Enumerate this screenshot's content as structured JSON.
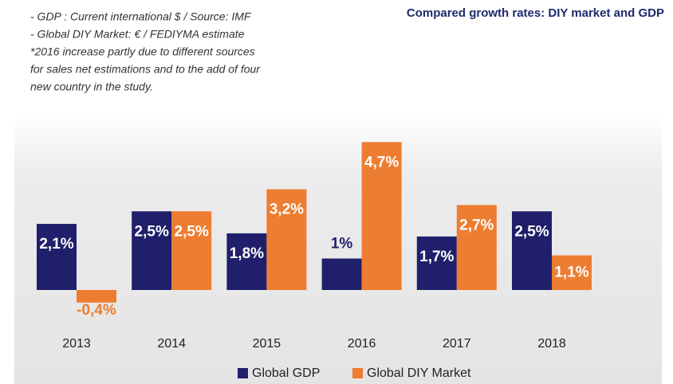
{
  "chart_data": {
    "type": "bar",
    "title": "Compared growth rates: DIY market and GDP",
    "notes": [
      "- GDP : Current international $ / Source: IMF",
      "- Global DIY Market: € / FEDIYMA estimate",
      "*2016 increase partly due to different sources",
      "for sales net estimations and to the add of four",
      "new country in the study."
    ],
    "categories": [
      "2013",
      "2014",
      "2015",
      "2016",
      "2017",
      "2018"
    ],
    "series": [
      {
        "name": "Global GDP",
        "color": "#1f1f6b",
        "values": [
          2.1,
          2.5,
          1.8,
          1,
          1.7,
          2.5
        ],
        "value_labels": [
          "2,1%",
          "2,5%",
          "1,8%",
          "1%",
          "1,7%",
          "2,5%"
        ]
      },
      {
        "name": "Global DIY Market",
        "color": "#ed7d31",
        "values": [
          -0.4,
          2.5,
          3.2,
          4.7,
          2.7,
          1.1
        ],
        "value_labels": [
          "-0,4%",
          "2,5%",
          "3,2%",
          "4,7%",
          "2,7%",
          "1,1%"
        ]
      }
    ],
    "legend": "bottom"
  }
}
